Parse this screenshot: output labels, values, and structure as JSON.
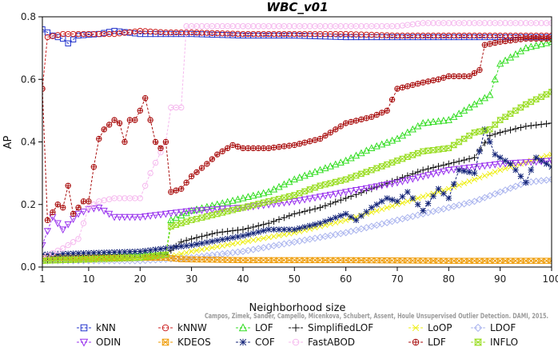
{
  "chart_data": {
    "type": "line",
    "title": "WBC_v01",
    "xlabel": "Neighborhood size",
    "ylabel": "AP",
    "xlim": [
      1,
      100
    ],
    "ylim": [
      0,
      0.8
    ],
    "xticks": [
      1,
      10,
      20,
      30,
      40,
      50,
      60,
      70,
      80,
      90,
      100
    ],
    "yticks": [
      0.0,
      0.2,
      0.4,
      0.6,
      0.8
    ],
    "ytick_labels": [
      "0.0",
      "0.2",
      "0.4",
      "0.6",
      "0.8"
    ],
    "grid": false,
    "legend_position": "bottom",
    "citation": "Campos, Zimek, Sander, Campello, Micenkova, Schubert, Assent, Houle  Unsupervised Outlier Detection. DAMI, 2015.",
    "series": [
      {
        "name": "kNN",
        "color": "#2233cc",
        "marker": "square",
        "points": [
          [
            1,
            0.76
          ],
          [
            3,
            0.74
          ],
          [
            5,
            0.73
          ],
          [
            6,
            0.715
          ],
          [
            8,
            0.74
          ],
          [
            12,
            0.745
          ],
          [
            15,
            0.755
          ],
          [
            20,
            0.745
          ],
          [
            25,
            0.745
          ],
          [
            30,
            0.745
          ],
          [
            40,
            0.74
          ],
          [
            50,
            0.74
          ],
          [
            60,
            0.735
          ],
          [
            70,
            0.735
          ],
          [
            80,
            0.735
          ],
          [
            90,
            0.735
          ],
          [
            100,
            0.735
          ]
        ]
      },
      {
        "name": "kNNW",
        "color": "#cc2222",
        "marker": "circle",
        "points": [
          [
            1,
            0.57
          ],
          [
            2,
            0.735
          ],
          [
            5,
            0.745
          ],
          [
            10,
            0.745
          ],
          [
            15,
            0.745
          ],
          [
            20,
            0.755
          ],
          [
            25,
            0.75
          ],
          [
            30,
            0.75
          ],
          [
            40,
            0.745
          ],
          [
            50,
            0.745
          ],
          [
            60,
            0.745
          ],
          [
            70,
            0.74
          ],
          [
            80,
            0.74
          ],
          [
            90,
            0.74
          ],
          [
            100,
            0.74
          ]
        ]
      },
      {
        "name": "LOF",
        "color": "#33dd22",
        "marker": "triangle",
        "points": [
          [
            1,
            0.03
          ],
          [
            10,
            0.035
          ],
          [
            20,
            0.04
          ],
          [
            25,
            0.04
          ],
          [
            26,
            0.15
          ],
          [
            30,
            0.18
          ],
          [
            35,
            0.2
          ],
          [
            40,
            0.22
          ],
          [
            45,
            0.24
          ],
          [
            50,
            0.28
          ],
          [
            55,
            0.31
          ],
          [
            60,
            0.34
          ],
          [
            65,
            0.38
          ],
          [
            70,
            0.41
          ],
          [
            75,
            0.46
          ],
          [
            80,
            0.47
          ],
          [
            85,
            0.52
          ],
          [
            88,
            0.55
          ],
          [
            90,
            0.65
          ],
          [
            95,
            0.7
          ],
          [
            100,
            0.72
          ]
        ]
      },
      {
        "name": "SimplifiedLOF",
        "color": "#111111",
        "marker": "plus",
        "points": [
          [
            1,
            0.02
          ],
          [
            10,
            0.025
          ],
          [
            20,
            0.03
          ],
          [
            25,
            0.04
          ],
          [
            28,
            0.08
          ],
          [
            30,
            0.09
          ],
          [
            35,
            0.11
          ],
          [
            40,
            0.12
          ],
          [
            45,
            0.14
          ],
          [
            50,
            0.17
          ],
          [
            55,
            0.19
          ],
          [
            60,
            0.22
          ],
          [
            65,
            0.25
          ],
          [
            70,
            0.28
          ],
          [
            75,
            0.31
          ],
          [
            80,
            0.33
          ],
          [
            85,
            0.35
          ],
          [
            88,
            0.42
          ],
          [
            90,
            0.43
          ],
          [
            95,
            0.45
          ],
          [
            100,
            0.46
          ]
        ]
      },
      {
        "name": "LoOP",
        "color": "#eeee11",
        "marker": "x",
        "points": [
          [
            1,
            0.02
          ],
          [
            10,
            0.022
          ],
          [
            20,
            0.025
          ],
          [
            25,
            0.03
          ],
          [
            30,
            0.05
          ],
          [
            40,
            0.08
          ],
          [
            50,
            0.11
          ],
          [
            60,
            0.15
          ],
          [
            70,
            0.2
          ],
          [
            80,
            0.25
          ],
          [
            90,
            0.31
          ],
          [
            100,
            0.36
          ]
        ]
      },
      {
        "name": "LDOF",
        "color": "#aab4ee",
        "marker": "diamond",
        "points": [
          [
            1,
            0.02
          ],
          [
            10,
            0.02
          ],
          [
            20,
            0.02
          ],
          [
            30,
            0.03
          ],
          [
            40,
            0.05
          ],
          [
            50,
            0.08
          ],
          [
            60,
            0.11
          ],
          [
            65,
            0.13
          ],
          [
            70,
            0.15
          ],
          [
            75,
            0.17
          ],
          [
            80,
            0.19
          ],
          [
            85,
            0.21
          ],
          [
            90,
            0.24
          ],
          [
            95,
            0.27
          ],
          [
            100,
            0.28
          ]
        ]
      },
      {
        "name": "ODIN",
        "color": "#9933ee",
        "marker": "triangle-down",
        "points": [
          [
            1,
            0.07
          ],
          [
            3,
            0.16
          ],
          [
            5,
            0.12
          ],
          [
            8,
            0.17
          ],
          [
            10,
            0.185
          ],
          [
            12,
            0.19
          ],
          [
            15,
            0.16
          ],
          [
            20,
            0.16
          ],
          [
            25,
            0.17
          ],
          [
            30,
            0.18
          ],
          [
            40,
            0.19
          ],
          [
            50,
            0.21
          ],
          [
            60,
            0.24
          ],
          [
            70,
            0.27
          ],
          [
            80,
            0.31
          ],
          [
            90,
            0.33
          ],
          [
            100,
            0.34
          ]
        ]
      },
      {
        "name": "KDEOS",
        "color": "#ee9900",
        "marker": "boxcross",
        "points": [
          [
            1,
            0.03
          ],
          [
            10,
            0.03
          ],
          [
            20,
            0.03
          ],
          [
            25,
            0.03
          ],
          [
            28,
            0.025
          ],
          [
            40,
            0.022
          ],
          [
            60,
            0.022
          ],
          [
            80,
            0.02
          ],
          [
            100,
            0.02
          ]
        ]
      },
      {
        "name": "COF",
        "color": "#112277",
        "marker": "asterisk",
        "points": [
          [
            1,
            0.04
          ],
          [
            10,
            0.045
          ],
          [
            20,
            0.05
          ],
          [
            25,
            0.06
          ],
          [
            30,
            0.07
          ],
          [
            40,
            0.1
          ],
          [
            45,
            0.12
          ],
          [
            50,
            0.12
          ],
          [
            55,
            0.14
          ],
          [
            60,
            0.17
          ],
          [
            62,
            0.15
          ],
          [
            65,
            0.19
          ],
          [
            68,
            0.22
          ],
          [
            70,
            0.21
          ],
          [
            72,
            0.24
          ],
          [
            75,
            0.18
          ],
          [
            78,
            0.25
          ],
          [
            80,
            0.22
          ],
          [
            82,
            0.31
          ],
          [
            85,
            0.3
          ],
          [
            87,
            0.44
          ],
          [
            89,
            0.36
          ],
          [
            92,
            0.33
          ],
          [
            95,
            0.27
          ],
          [
            97,
            0.35
          ],
          [
            100,
            0.32
          ]
        ]
      },
      {
        "name": "FastABOD",
        "color": "#f5b8ee",
        "marker": "circle",
        "points": [
          [
            1,
            0.03
          ],
          [
            5,
            0.06
          ],
          [
            8,
            0.09
          ],
          [
            10,
            0.19
          ],
          [
            12,
            0.21
          ],
          [
            15,
            0.22
          ],
          [
            20,
            0.22
          ],
          [
            22,
            0.3
          ],
          [
            25,
            0.4
          ],
          [
            26,
            0.51
          ],
          [
            28,
            0.51
          ],
          [
            29,
            0.77
          ],
          [
            35,
            0.77
          ],
          [
            40,
            0.77
          ],
          [
            50,
            0.77
          ],
          [
            60,
            0.77
          ],
          [
            70,
            0.77
          ],
          [
            75,
            0.78
          ],
          [
            80,
            0.78
          ],
          [
            90,
            0.78
          ],
          [
            100,
            0.78
          ]
        ]
      },
      {
        "name": "LDF",
        "color": "#aa1111",
        "marker": "circleplus",
        "points": [
          [
            1,
            0.57
          ],
          [
            2,
            0.15
          ],
          [
            4,
            0.2
          ],
          [
            5,
            0.19
          ],
          [
            6,
            0.26
          ],
          [
            7,
            0.17
          ],
          [
            9,
            0.21
          ],
          [
            10,
            0.21
          ],
          [
            11,
            0.32
          ],
          [
            12,
            0.41
          ],
          [
            13,
            0.44
          ],
          [
            15,
            0.47
          ],
          [
            16,
            0.46
          ],
          [
            17,
            0.4
          ],
          [
            18,
            0.47
          ],
          [
            19,
            0.47
          ],
          [
            20,
            0.5
          ],
          [
            21,
            0.54
          ],
          [
            22,
            0.47
          ],
          [
            23,
            0.4
          ],
          [
            24,
            0.38
          ],
          [
            25,
            0.4
          ],
          [
            26,
            0.24
          ],
          [
            28,
            0.25
          ],
          [
            30,
            0.29
          ],
          [
            33,
            0.33
          ],
          [
            35,
            0.36
          ],
          [
            38,
            0.39
          ],
          [
            40,
            0.38
          ],
          [
            45,
            0.38
          ],
          [
            50,
            0.39
          ],
          [
            55,
            0.41
          ],
          [
            60,
            0.46
          ],
          [
            65,
            0.48
          ],
          [
            68,
            0.5
          ],
          [
            70,
            0.57
          ],
          [
            75,
            0.59
          ],
          [
            78,
            0.6
          ],
          [
            80,
            0.61
          ],
          [
            84,
            0.61
          ],
          [
            86,
            0.63
          ],
          [
            87,
            0.71
          ],
          [
            90,
            0.72
          ],
          [
            95,
            0.73
          ],
          [
            100,
            0.73
          ]
        ]
      },
      {
        "name": "INFLO",
        "color": "#99dd22",
        "marker": "hourglass",
        "points": [
          [
            1,
            0.02
          ],
          [
            10,
            0.025
          ],
          [
            20,
            0.03
          ],
          [
            25,
            0.04
          ],
          [
            26,
            0.13
          ],
          [
            30,
            0.15
          ],
          [
            35,
            0.17
          ],
          [
            40,
            0.19
          ],
          [
            45,
            0.21
          ],
          [
            50,
            0.23
          ],
          [
            55,
            0.26
          ],
          [
            60,
            0.28
          ],
          [
            65,
            0.31
          ],
          [
            70,
            0.34
          ],
          [
            75,
            0.37
          ],
          [
            80,
            0.38
          ],
          [
            85,
            0.43
          ],
          [
            88,
            0.44
          ],
          [
            90,
            0.47
          ],
          [
            95,
            0.52
          ],
          [
            100,
            0.56
          ]
        ]
      }
    ]
  }
}
